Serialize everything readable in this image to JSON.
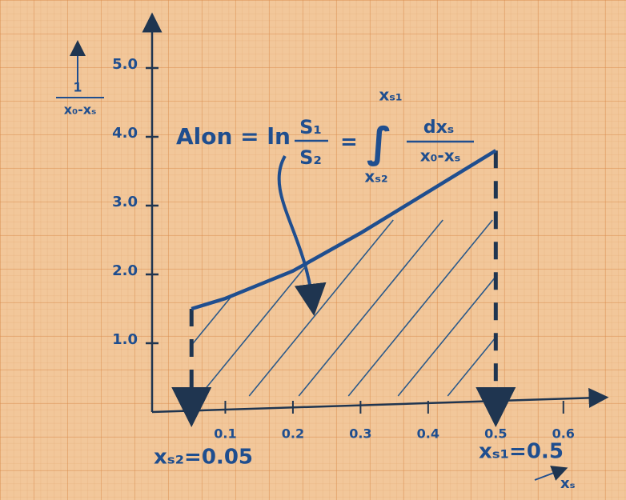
{
  "chart_data": {
    "type": "line",
    "x": [
      0.05,
      0.1,
      0.2,
      0.3,
      0.4,
      0.5
    ],
    "values": [
      1.5,
      1.65,
      2.05,
      2.6,
      3.2,
      3.8
    ],
    "color": "#1f4e8f",
    "xlim": [
      0,
      0.65
    ],
    "xticks": [
      0.1,
      0.2,
      0.3,
      0.4,
      0.5,
      0.6
    ],
    "ylim": [
      0,
      5.5
    ],
    "yticks": [
      {
        "value": 1,
        "label": "1.0"
      },
      {
        "value": 2,
        "label": "2.0"
      },
      {
        "value": 3,
        "label": "3.0"
      },
      {
        "value": 4,
        "label": "4.0"
      },
      {
        "value": 5,
        "label": "5.0"
      }
    ],
    "x_label": "xₛ",
    "y_label": {
      "numerator": "1",
      "denominator": "x₀-xₛ"
    },
    "formula": {
      "left": "Alon = ln",
      "frac_top": "S₁",
      "frac_bottom": "S₂",
      "equals": "=",
      "upper_limit": "xₛ₁",
      "lower_limit": "xₛ₂",
      "integrand_top": "dxₛ",
      "integrand_bottom": "x₀-xₛ"
    },
    "annotations": [
      "xₛ₂=0.05",
      "xₛ₁=0.5"
    ]
  }
}
